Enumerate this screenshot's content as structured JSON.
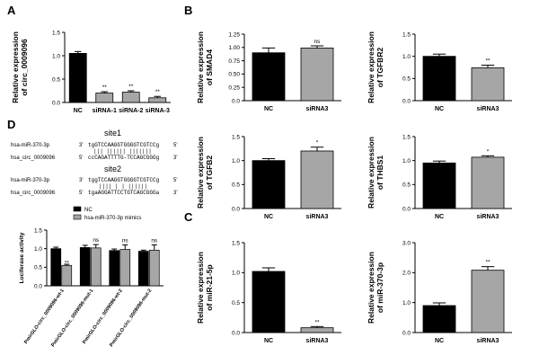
{
  "panels": {
    "A": "A",
    "B": "B",
    "C": "C",
    "D": "D"
  },
  "colors": {
    "nc": "#000000",
    "sirna": "#a6a6a6",
    "mimic": "#a6a6a6"
  },
  "panelD_top": {
    "site1": {
      "title": "site1",
      "row1_name": "hsa-miR-370-3p",
      "row1_end3": "3'",
      "row1_seq": "tgGTCCAAGGTGGGGTCGTCCg",
      "row1_end5": "5'",
      "pairs": "|||  ||||||   |||||||",
      "row2_name": "hsa_circ_0009096",
      "row2_end5": "5'",
      "row2_seq": "ccCAGATTTTG-TCCAGCGGGg",
      "row2_end3": "3'"
    },
    "site2": {
      "title": "site2",
      "row1_name": "hsa-miR-370-3p",
      "row1_end3": "3'",
      "row1_seq": "tggTCCAAGGTGGGGTCGTCCg",
      "row1_end5": "5'",
      "pairs": "||||  | |  ||||||",
      "row2_name": "hsa_circ_0009096",
      "row2_end5": "5'",
      "row2_seq": "tgaAGGATTCCTGTCAGCGGGa",
      "row2_end3": "3'"
    }
  },
  "chart_data": [
    {
      "id": "A",
      "type": "bar",
      "categories": [
        "NC",
        "siRNA-1",
        "siRNA-2",
        "siRNA-3"
      ],
      "values": [
        1.05,
        0.2,
        0.22,
        0.1
      ],
      "errors": [
        0.04,
        0.03,
        0.03,
        0.03
      ],
      "significance": [
        "",
        "**",
        "**",
        "**"
      ],
      "ylabel_lines": [
        "Relative expression",
        "of circ_0009096"
      ],
      "ylim": [
        0,
        1.5
      ],
      "yticks": [
        "0.0",
        "0.5",
        "1.0",
        "1.5"
      ]
    },
    {
      "id": "B1",
      "type": "bar",
      "categories": [
        "NC",
        "siRNA3"
      ],
      "values": [
        0.9,
        0.99
      ],
      "errors": [
        0.09,
        0.04
      ],
      "significance": [
        "",
        "ns"
      ],
      "ylabel_lines": [
        "Relative expression",
        "of SMAD4"
      ],
      "ylim": [
        0,
        1.25
      ],
      "yticks": [
        "0.0",
        "0.25",
        "0.50",
        "0.75",
        "1.00",
        "1.25"
      ]
    },
    {
      "id": "B2",
      "type": "bar",
      "categories": [
        "NC",
        "siRNA3"
      ],
      "values": [
        1.0,
        0.74
      ],
      "errors": [
        0.05,
        0.06
      ],
      "significance": [
        "",
        "**"
      ],
      "ylabel_lines": [
        "Relative expression",
        "of TGFBR2"
      ],
      "ylim": [
        0,
        1.5
      ],
      "yticks": [
        "0.0",
        "0.5",
        "1.0",
        "1.5"
      ]
    },
    {
      "id": "B3",
      "type": "bar",
      "categories": [
        "NC",
        "siRNA3"
      ],
      "values": [
        1.0,
        1.2
      ],
      "errors": [
        0.04,
        0.08
      ],
      "significance": [
        "",
        "*"
      ],
      "ylabel_lines": [
        "Relative expression",
        "of TGFB2"
      ],
      "ylim": [
        0,
        1.5
      ],
      "yticks": [
        "0.0",
        "0.5",
        "1.0",
        "1.5"
      ]
    },
    {
      "id": "B4",
      "type": "bar",
      "categories": [
        "NC",
        "siRNA3"
      ],
      "values": [
        0.95,
        1.07
      ],
      "errors": [
        0.04,
        0.03
      ],
      "significance": [
        "",
        "*"
      ],
      "ylabel_lines": [
        "Relative expression",
        "of THBS1"
      ],
      "ylim": [
        0,
        1.5
      ],
      "yticks": [
        "0.0",
        "0.5",
        "1.0",
        "1.5"
      ]
    },
    {
      "id": "C1",
      "type": "bar",
      "categories": [
        "NC",
        "siRNA3"
      ],
      "values": [
        1.02,
        0.08
      ],
      "errors": [
        0.06,
        0.02
      ],
      "significance": [
        "",
        "**"
      ],
      "ylabel_lines": [
        "Relative expression",
        "of miR-21-5p"
      ],
      "ylim": [
        0,
        1.5
      ],
      "yticks": [
        "0.0",
        "0.5",
        "1.0",
        "1.5"
      ]
    },
    {
      "id": "C2",
      "type": "bar",
      "categories": [
        "NC",
        "siRNA3"
      ],
      "values": [
        0.9,
        2.08
      ],
      "errors": [
        0.09,
        0.12
      ],
      "significance": [
        "",
        "**"
      ],
      "ylabel_lines": [
        "Relative expression",
        "of miR-370-3p"
      ],
      "ylim": [
        0,
        3.0
      ],
      "yticks": [
        "0.0",
        "1.0",
        "2.0",
        "3.0"
      ]
    },
    {
      "id": "D",
      "type": "bar",
      "categories": [
        "PmirGLO-circ_0009096-wt-1",
        "PmirGLO-circ_0009096-mut-1",
        "PmirGLO-circ_0009096-wt-2",
        "PmirGLO-circ_0009096-mut-2"
      ],
      "series": [
        {
          "name": "NC",
          "values": [
            1.0,
            1.03,
            0.95,
            0.93
          ],
          "errors": [
            0.04,
            0.06,
            0.04,
            0.03
          ]
        },
        {
          "name": "hsa-miR-370-3p mimics",
          "values": [
            0.55,
            1.02,
            0.98,
            0.96
          ],
          "errors": [
            0.03,
            0.09,
            0.12,
            0.14
          ]
        }
      ],
      "significance": [
        "**",
        "ns",
        "ns",
        "ns"
      ],
      "ylabel": "Luciferase activity",
      "ylim": [
        0,
        1.5
      ],
      "yticks": [
        "0.0",
        "0.5",
        "1.0",
        "1.5"
      ]
    }
  ]
}
